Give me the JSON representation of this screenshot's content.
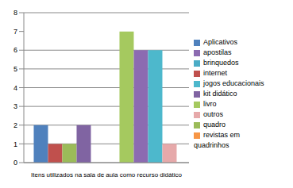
{
  "chart_data": {
    "type": "bar",
    "categories": [
      "Itens utilizados na sala de aula como recurso didático"
    ],
    "series": [
      {
        "name": "Aplicativos",
        "color": "#4f81bd",
        "values": [
          2
        ]
      },
      {
        "name": "internet",
        "color": "#c0504d",
        "values": [
          1
        ]
      },
      {
        "name": "quadro",
        "color": "#9bbb59",
        "values": [
          1
        ]
      },
      {
        "name": "kit didático",
        "color": "#8064a2",
        "values": [
          2
        ]
      },
      {
        "name": "brinquedos",
        "color": "#4bacc6",
        "values": [
          0
        ]
      },
      {
        "name": "revistas em quadrinhos",
        "color": "#f79646",
        "values": [
          0
        ]
      },
      {
        "name": "livro",
        "color": "#a5c95f",
        "values": [
          7
        ]
      },
      {
        "name": "apostilas",
        "color": "#8c6bb1",
        "values": [
          6
        ]
      },
      {
        "name": "jogos educacionais",
        "color": "#4db8cc",
        "values": [
          6
        ]
      },
      {
        "name": "outros",
        "color": "#e6a9aa",
        "values": [
          1
        ]
      }
    ],
    "ylim": [
      0,
      8
    ],
    "yticks": [
      0,
      1,
      2,
      3,
      4,
      5,
      6,
      7,
      8
    ],
    "grid": true,
    "legend": "right"
  }
}
